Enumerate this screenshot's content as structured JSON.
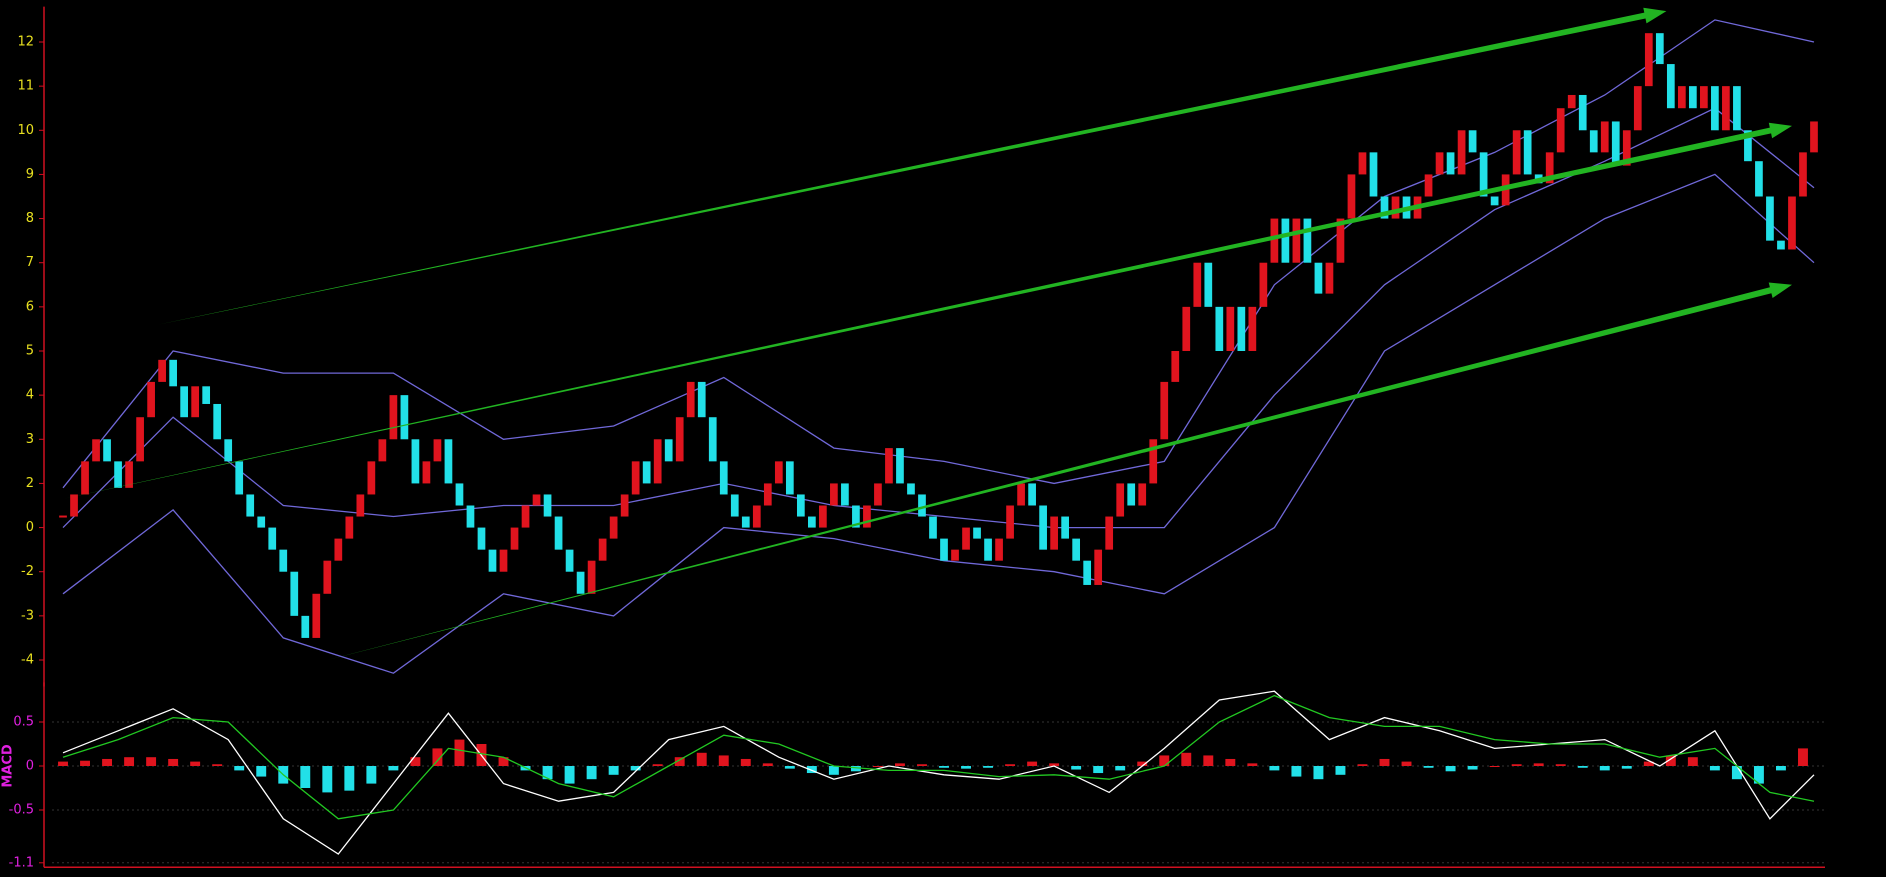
{
  "chart_data": [
    {
      "type": "renko",
      "xlim": [
        -1,
        160
      ],
      "ylim": [
        -4.6,
        12.8
      ],
      "yticks": [
        12,
        11,
        10,
        9,
        8,
        7,
        6,
        5,
        4,
        3,
        2,
        0,
        -2,
        -3,
        -4
      ],
      "tick_color": "#e8e020",
      "axis_color": "#d01020",
      "up_color": "#e0141e",
      "down_color": "#22e0e8",
      "values": [
        0.5,
        1.5,
        2.5,
        3,
        2.5,
        1.8,
        2.5,
        3.5,
        4.3,
        4.8,
        4.2,
        3.5,
        4.2,
        3.8,
        3,
        2.5,
        1.5,
        0.5,
        0,
        -1,
        -2,
        -3,
        -3.5,
        -2.5,
        -1.5,
        -0.5,
        0.5,
        1.5,
        2.5,
        3,
        4,
        3,
        2,
        2.5,
        3,
        2,
        1,
        0,
        -1,
        -2,
        -1,
        0,
        1,
        1.5,
        0.5,
        -1,
        -2,
        -2.5,
        -1.5,
        -0.5,
        0.5,
        1.5,
        2.5,
        2,
        3,
        2.5,
        3.5,
        4.3,
        3.5,
        2.5,
        1.5,
        0.5,
        0,
        1,
        2,
        2.5,
        1.5,
        0.5,
        0,
        1,
        2,
        1,
        0,
        1,
        2,
        2.8,
        2,
        1.5,
        0.5,
        -0.5,
        -1.5,
        -1,
        0,
        -0.5,
        -1.5,
        -0.5,
        1,
        2,
        1,
        -1,
        0.5,
        -0.5,
        -1.5,
        -2.3,
        -1,
        0.5,
        2,
        1,
        2,
        3,
        4.3,
        5,
        6,
        7,
        6,
        5,
        6,
        5,
        6,
        7,
        8,
        7,
        8,
        7,
        6.3,
        7,
        8,
        9,
        9.5,
        8.5,
        8,
        8.5,
        8,
        8.5,
        9,
        9.5,
        9,
        10,
        9.5,
        8.5,
        8.3,
        9,
        10,
        9,
        8.8,
        9.5,
        10.5,
        10.8,
        10,
        9.5,
        10.2,
        9.2,
        10,
        11,
        12.2,
        11.5,
        10.5,
        11,
        10.5,
        11,
        10,
        11,
        10,
        9.3,
        8.5,
        7.5,
        7.3,
        8.5,
        9.5,
        10.2
      ],
      "bands": {
        "color": "#7068d8",
        "x": [
          0,
          10,
          20,
          30,
          40,
          50,
          60,
          70,
          80,
          90,
          100,
          110,
          120,
          130,
          140,
          150,
          159
        ],
        "series": [
          {
            "values": [
              1.8,
              5,
              4.5,
              4.5,
              3,
              3.3,
              4.4,
              2.8,
              2.5,
              2,
              2.5,
              6.5,
              8.5,
              9.5,
              10.8,
              12.5,
              12
            ]
          },
          {
            "values": [
              0,
              3.5,
              1,
              0.5,
              1,
              1,
              2,
              1,
              0.5,
              0,
              0,
              4,
              6.5,
              8.2,
              9.3,
              10.5,
              8.7
            ]
          },
          {
            "values": [
              -2.5,
              0.8,
              -3.5,
              -4.3,
              -2.5,
              -3,
              0,
              -0.5,
              -1.5,
              -2,
              -2.5,
              0,
              5,
              6.5,
              8,
              9,
              7
            ]
          }
        ]
      },
      "trend_lines": {
        "color": "#22b422",
        "lines": [
          {
            "x": [
              8.7,
              145.6
            ],
            "y": [
              5.6,
              12.7
            ]
          },
          {
            "x": [
              0,
              157
            ],
            "y": [
              1.3,
              10.1
            ]
          },
          {
            "x": [
              24,
              157
            ],
            "y": [
              -4,
              6.5
            ]
          }
        ]
      }
    },
    {
      "type": "macd",
      "label": "MACD",
      "xlim": [
        -1,
        160
      ],
      "ylim": [
        -1.15,
        0.95
      ],
      "yticks": [
        0.5,
        0,
        -0.5,
        -1.1
      ],
      "tick_color": "#e020e0",
      "grid": true,
      "up_color": "#e0141e",
      "down_color": "#22e0e8",
      "lines_x": [
        0,
        5,
        10,
        15,
        20,
        25,
        30,
        35,
        40,
        45,
        50,
        55,
        60,
        65,
        70,
        75,
        80,
        85,
        90,
        95,
        100,
        105,
        110,
        115,
        120,
        125,
        130,
        135,
        140,
        145,
        150,
        155,
        159
      ],
      "series": [
        {
          "color": "#ffffff",
          "values": [
            0.15,
            0.4,
            0.65,
            0.3,
            -0.6,
            -1.0,
            -0.2,
            0.6,
            -0.2,
            -0.4,
            -0.3,
            0.3,
            0.45,
            0.1,
            -0.15,
            0.0,
            -0.1,
            -0.15,
            0.0,
            -0.3,
            0.2,
            0.75,
            0.85,
            0.3,
            0.55,
            0.4,
            0.2,
            0.25,
            0.3,
            0.0,
            0.4,
            -0.6,
            -0.1
          ]
        },
        {
          "color": "#22c822",
          "values": [
            0.1,
            0.3,
            0.55,
            0.5,
            -0.1,
            -0.6,
            -0.5,
            0.2,
            0.1,
            -0.2,
            -0.35,
            0,
            0.35,
            0.25,
            0,
            -0.05,
            -0.05,
            -0.12,
            -0.1,
            -0.15,
            0,
            0.5,
            0.8,
            0.55,
            0.45,
            0.45,
            0.3,
            0.25,
            0.25,
            0.1,
            0.2,
            -0.3,
            -0.4
          ]
        }
      ],
      "hist_x": [
        0,
        2,
        4,
        6,
        8,
        10,
        12,
        14,
        16,
        18,
        20,
        22,
        24,
        26,
        28,
        30,
        32,
        34,
        36,
        38,
        40,
        42,
        44,
        46,
        48,
        50,
        52,
        54,
        56,
        58,
        60,
        62,
        64,
        66,
        68,
        70,
        72,
        74,
        76,
        78,
        80,
        82,
        84,
        86,
        88,
        90,
        92,
        94,
        96,
        98,
        100,
        102,
        104,
        106,
        108,
        110,
        112,
        114,
        116,
        118,
        120,
        122,
        124,
        126,
        128,
        130,
        132,
        134,
        136,
        138,
        140,
        142,
        144,
        146,
        148,
        150,
        152,
        154,
        156,
        158
      ],
      "hist": [
        0.05,
        0.06,
        0.08,
        0.1,
        0.1,
        0.08,
        0.05,
        0.02,
        -0.05,
        -0.12,
        -0.2,
        -0.25,
        -0.3,
        -0.28,
        -0.2,
        -0.05,
        0.1,
        0.2,
        0.3,
        0.25,
        0.1,
        -0.05,
        -0.15,
        -0.2,
        -0.15,
        -0.1,
        -0.05,
        0.02,
        0.1,
        0.15,
        0.12,
        0.08,
        0.03,
        -0.03,
        -0.08,
        -0.1,
        -0.06,
        0,
        0.03,
        0.02,
        -0.02,
        -0.03,
        -0.02,
        0.02,
        0.05,
        0.03,
        -0.04,
        -0.08,
        -0.05,
        0.05,
        0.12,
        0.15,
        0.12,
        0.08,
        0.03,
        -0.05,
        -0.12,
        -0.15,
        -0.1,
        0.02,
        0.08,
        0.05,
        -0.02,
        -0.06,
        -0.04,
        0,
        0.02,
        0.03,
        0.02,
        -0.02,
        -0.05,
        -0.03,
        0.05,
        0.12,
        0.1,
        -0.05,
        -0.15,
        -0.2,
        -0.05,
        0.2
      ]
    }
  ]
}
